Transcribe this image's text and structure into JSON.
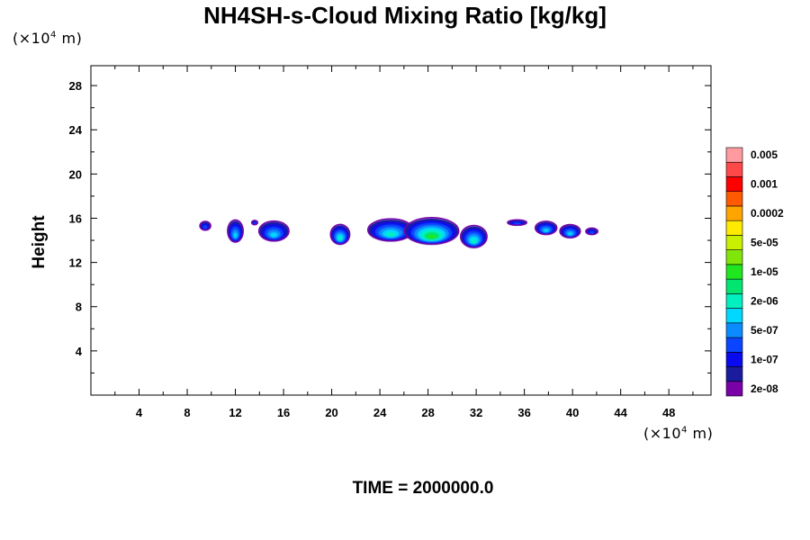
{
  "chart_data": {
    "type": "heatmap",
    "title": "NH4SH-s-Cloud Mixing Ratio [kg/kg]",
    "ylabel": "Height",
    "x_unit_prefix": "(×10",
    "x_unit_exp": "4",
    "x_unit_suffix": " m)",
    "y_unit_prefix": "(×10",
    "y_unit_exp": "4",
    "y_unit_suffix": " m)",
    "xlim": [
      0,
      51.5
    ],
    "ylim": [
      0,
      29.8
    ],
    "x_ticks": [
      4,
      8,
      12,
      16,
      20,
      24,
      28,
      32,
      36,
      40,
      44,
      48
    ],
    "y_ticks": [
      4,
      8,
      12,
      16,
      20,
      24,
      28
    ],
    "time_label": "TIME = 2000000.0",
    "colorbar": {
      "colors": [
        "#7a00a8",
        "#1b1b9e",
        "#0a0aee",
        "#0a46ff",
        "#0a8cff",
        "#00d8ff",
        "#00f0c0",
        "#00e670",
        "#20e620",
        "#80e60a",
        "#c8f000",
        "#ffea00",
        "#ffa500",
        "#ff5a00",
        "#ff0000",
        "#ff4848",
        "#ff9ba0"
      ],
      "labels": [
        "2e-08",
        "1e-07",
        "5e-07",
        "2e-06",
        "1e-05",
        "5e-05",
        "0.0002",
        "0.001",
        "0.005"
      ]
    },
    "cloud_blobs": [
      {
        "x": 9.5,
        "y": 15.3,
        "w": 0.9,
        "h": 0.8,
        "level": 2
      },
      {
        "x": 12.0,
        "y": 14.8,
        "w": 1.3,
        "h": 2.0,
        "level": 4
      },
      {
        "x": 13.6,
        "y": 15.6,
        "w": 0.5,
        "h": 0.4,
        "level": 2
      },
      {
        "x": 15.2,
        "y": 14.8,
        "w": 2.5,
        "h": 1.8,
        "level": 4
      },
      {
        "x": 20.7,
        "y": 14.5,
        "w": 1.6,
        "h": 1.8,
        "level": 5
      },
      {
        "x": 24.9,
        "y": 14.9,
        "w": 3.8,
        "h": 2.0,
        "level": 5
      },
      {
        "x": 28.3,
        "y": 14.8,
        "w": 4.5,
        "h": 2.4,
        "level": 7
      },
      {
        "x": 31.8,
        "y": 14.3,
        "w": 2.2,
        "h": 2.0,
        "level": 5
      },
      {
        "x": 35.4,
        "y": 15.6,
        "w": 1.6,
        "h": 0.5,
        "level": 2
      },
      {
        "x": 37.8,
        "y": 15.1,
        "w": 1.8,
        "h": 1.2,
        "level": 4
      },
      {
        "x": 39.8,
        "y": 14.8,
        "w": 1.7,
        "h": 1.2,
        "level": 4
      },
      {
        "x": 41.6,
        "y": 14.8,
        "w": 1.0,
        "h": 0.6,
        "level": 2
      }
    ]
  }
}
